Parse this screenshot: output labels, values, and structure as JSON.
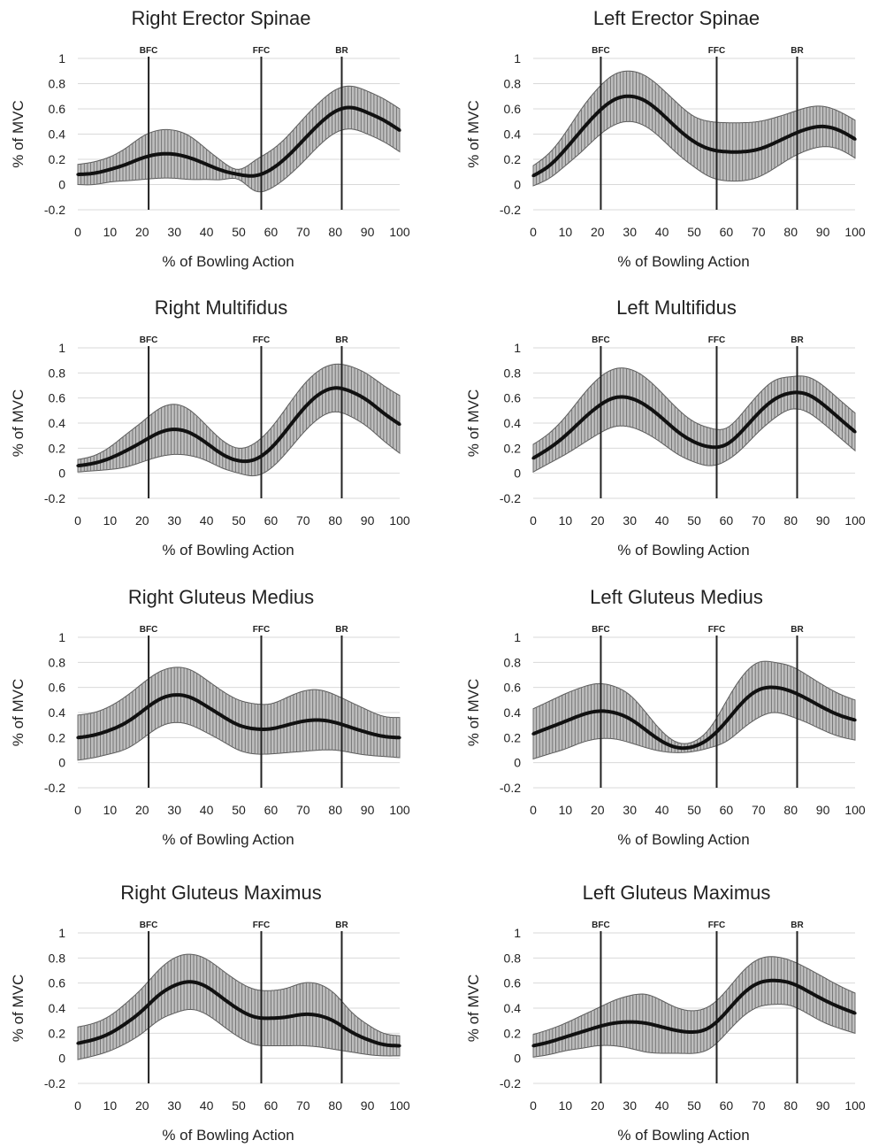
{
  "chart_data": [
    {
      "type": "line",
      "title": "Right Erector Spinae",
      "xlabel": "% of Bowling Action",
      "ylabel": "% of MVC",
      "xlim": [
        0,
        100
      ],
      "ylim": [
        -0.2,
        1
      ],
      "xticks": [
        0,
        10,
        20,
        30,
        40,
        50,
        60,
        70,
        80,
        90,
        100
      ],
      "yticks": [
        -0.2,
        0,
        0.2,
        0.4,
        0.6,
        0.8,
        1
      ],
      "grid": "horizontal",
      "events": [
        {
          "label": "BFC",
          "x": 22
        },
        {
          "label": "FFC",
          "x": 57
        },
        {
          "label": "BR",
          "x": 82
        }
      ],
      "x": [
        0,
        5,
        10,
        15,
        20,
        25,
        30,
        35,
        40,
        45,
        50,
        55,
        60,
        65,
        70,
        75,
        80,
        85,
        90,
        95,
        100
      ],
      "mean": [
        0.08,
        0.09,
        0.12,
        0.16,
        0.21,
        0.24,
        0.24,
        0.21,
        0.16,
        0.11,
        0.08,
        0.07,
        0.12,
        0.22,
        0.35,
        0.48,
        0.58,
        0.61,
        0.57,
        0.51,
        0.43
      ],
      "sd": [
        0.08,
        0.09,
        0.1,
        0.13,
        0.17,
        0.19,
        0.19,
        0.17,
        0.12,
        0.07,
        0.04,
        0.12,
        0.15,
        0.16,
        0.17,
        0.17,
        0.17,
        0.17,
        0.17,
        0.17,
        0.17
      ]
    },
    {
      "type": "line",
      "title": "Left Erector Spinae",
      "xlabel": "% of Bowling Action",
      "ylabel": "% of MVC",
      "xlim": [
        0,
        100
      ],
      "ylim": [
        -0.2,
        1
      ],
      "xticks": [
        0,
        10,
        20,
        30,
        40,
        50,
        60,
        70,
        80,
        90,
        100
      ],
      "yticks": [
        -0.2,
        0,
        0.2,
        0.4,
        0.6,
        0.8,
        1
      ],
      "grid": "horizontal",
      "events": [
        {
          "label": "BFC",
          "x": 21
        },
        {
          "label": "FFC",
          "x": 57
        },
        {
          "label": "BR",
          "x": 82
        }
      ],
      "x": [
        0,
        5,
        10,
        15,
        20,
        25,
        30,
        35,
        40,
        45,
        50,
        55,
        60,
        65,
        70,
        75,
        80,
        85,
        90,
        95,
        100
      ],
      "mean": [
        0.07,
        0.15,
        0.28,
        0.43,
        0.57,
        0.67,
        0.7,
        0.66,
        0.56,
        0.44,
        0.34,
        0.28,
        0.26,
        0.26,
        0.28,
        0.33,
        0.39,
        0.44,
        0.46,
        0.43,
        0.36
      ],
      "sd": [
        0.08,
        0.1,
        0.13,
        0.17,
        0.19,
        0.2,
        0.2,
        0.2,
        0.2,
        0.2,
        0.2,
        0.22,
        0.23,
        0.23,
        0.22,
        0.2,
        0.18,
        0.17,
        0.16,
        0.15,
        0.15
      ]
    },
    {
      "type": "line",
      "title": "Right Multifidus",
      "xlabel": "% of Bowling Action",
      "ylabel": "% of MVC",
      "xlim": [
        0,
        100
      ],
      "ylim": [
        -0.2,
        1
      ],
      "xticks": [
        0,
        10,
        20,
        30,
        40,
        50,
        60,
        70,
        80,
        90,
        100
      ],
      "yticks": [
        -0.2,
        0,
        0.2,
        0.4,
        0.6,
        0.8,
        1
      ],
      "grid": "horizontal",
      "events": [
        {
          "label": "BFC",
          "x": 22
        },
        {
          "label": "FFC",
          "x": 57
        },
        {
          "label": "BR",
          "x": 82
        }
      ],
      "x": [
        0,
        5,
        10,
        15,
        20,
        25,
        30,
        35,
        40,
        45,
        50,
        55,
        60,
        65,
        70,
        75,
        80,
        85,
        90,
        95,
        100
      ],
      "mean": [
        0.06,
        0.08,
        0.12,
        0.18,
        0.25,
        0.32,
        0.35,
        0.32,
        0.24,
        0.15,
        0.1,
        0.11,
        0.2,
        0.35,
        0.51,
        0.63,
        0.68,
        0.65,
        0.58,
        0.48,
        0.39
      ],
      "sd": [
        0.05,
        0.06,
        0.09,
        0.13,
        0.16,
        0.19,
        0.2,
        0.18,
        0.14,
        0.11,
        0.1,
        0.13,
        0.16,
        0.18,
        0.19,
        0.19,
        0.19,
        0.2,
        0.21,
        0.22,
        0.23
      ]
    },
    {
      "type": "line",
      "title": "Left Multifidus",
      "xlabel": "% of Bowling Action",
      "ylabel": "% of MVC",
      "xlim": [
        0,
        100
      ],
      "ylim": [
        -0.2,
        1
      ],
      "xticks": [
        0,
        10,
        20,
        30,
        40,
        50,
        60,
        70,
        80,
        90,
        100
      ],
      "yticks": [
        -0.2,
        0,
        0.2,
        0.4,
        0.6,
        0.8,
        1
      ],
      "grid": "horizontal",
      "events": [
        {
          "label": "BFC",
          "x": 21
        },
        {
          "label": "FFC",
          "x": 57
        },
        {
          "label": "BR",
          "x": 82
        }
      ],
      "x": [
        0,
        5,
        10,
        15,
        20,
        25,
        30,
        35,
        40,
        45,
        50,
        55,
        60,
        65,
        70,
        75,
        80,
        85,
        90,
        95,
        100
      ],
      "mean": [
        0.12,
        0.2,
        0.3,
        0.42,
        0.53,
        0.6,
        0.6,
        0.54,
        0.44,
        0.33,
        0.25,
        0.21,
        0.23,
        0.34,
        0.48,
        0.59,
        0.64,
        0.63,
        0.55,
        0.44,
        0.33
      ],
      "sd": [
        0.11,
        0.12,
        0.15,
        0.19,
        0.22,
        0.23,
        0.23,
        0.22,
        0.2,
        0.18,
        0.16,
        0.15,
        0.13,
        0.14,
        0.15,
        0.15,
        0.13,
        0.14,
        0.15,
        0.15,
        0.15
      ]
    },
    {
      "type": "line",
      "title": "Right Gluteus Medius",
      "xlabel": "% of Bowling Action",
      "ylabel": "% of MVC",
      "xlim": [
        0,
        100
      ],
      "ylim": [
        -0.2,
        1
      ],
      "xticks": [
        0,
        10,
        20,
        30,
        40,
        50,
        60,
        70,
        80,
        90,
        100
      ],
      "yticks": [
        -0.2,
        0,
        0.2,
        0.4,
        0.6,
        0.8,
        1
      ],
      "grid": "horizontal",
      "events": [
        {
          "label": "BFC",
          "x": 22
        },
        {
          "label": "FFC",
          "x": 57
        },
        {
          "label": "BR",
          "x": 82
        }
      ],
      "x": [
        0,
        5,
        10,
        15,
        20,
        25,
        30,
        35,
        40,
        45,
        50,
        55,
        60,
        65,
        70,
        75,
        80,
        85,
        90,
        95,
        100
      ],
      "mean": [
        0.2,
        0.22,
        0.26,
        0.32,
        0.41,
        0.5,
        0.54,
        0.52,
        0.45,
        0.37,
        0.3,
        0.27,
        0.27,
        0.3,
        0.33,
        0.34,
        0.32,
        0.28,
        0.24,
        0.21,
        0.2
      ],
      "sd": [
        0.18,
        0.18,
        0.19,
        0.21,
        0.22,
        0.22,
        0.22,
        0.22,
        0.21,
        0.2,
        0.2,
        0.2,
        0.2,
        0.22,
        0.24,
        0.24,
        0.22,
        0.2,
        0.18,
        0.16,
        0.16
      ]
    },
    {
      "type": "line",
      "title": "Left Gluteus Medius",
      "xlabel": "% of Bowling Action",
      "ylabel": "% of MVC",
      "xlim": [
        0,
        100
      ],
      "ylim": [
        -0.2,
        1
      ],
      "xticks": [
        0,
        10,
        20,
        30,
        40,
        50,
        60,
        70,
        80,
        90,
        100
      ],
      "yticks": [
        -0.2,
        0,
        0.2,
        0.4,
        0.6,
        0.8,
        1
      ],
      "grid": "horizontal",
      "events": [
        {
          "label": "BFC",
          "x": 21
        },
        {
          "label": "FFC",
          "x": 57
        },
        {
          "label": "BR",
          "x": 82
        }
      ],
      "x": [
        0,
        5,
        10,
        15,
        20,
        25,
        30,
        35,
        40,
        45,
        50,
        55,
        60,
        65,
        70,
        75,
        80,
        85,
        90,
        95,
        100
      ],
      "mean": [
        0.23,
        0.28,
        0.33,
        0.38,
        0.41,
        0.4,
        0.35,
        0.26,
        0.17,
        0.12,
        0.13,
        0.2,
        0.33,
        0.48,
        0.58,
        0.6,
        0.57,
        0.51,
        0.44,
        0.38,
        0.34
      ],
      "sd": [
        0.2,
        0.21,
        0.22,
        0.22,
        0.22,
        0.21,
        0.19,
        0.14,
        0.08,
        0.04,
        0.04,
        0.08,
        0.16,
        0.21,
        0.22,
        0.2,
        0.2,
        0.19,
        0.18,
        0.17,
        0.16
      ]
    },
    {
      "type": "line",
      "title": "Right Gluteus Maximus",
      "xlabel": "% of Bowling Action",
      "ylabel": "% of MVC",
      "xlim": [
        0,
        100
      ],
      "ylim": [
        -0.2,
        1
      ],
      "xticks": [
        0,
        10,
        20,
        30,
        40,
        50,
        60,
        70,
        80,
        90,
        100
      ],
      "yticks": [
        -0.2,
        0,
        0.2,
        0.4,
        0.6,
        0.8,
        1
      ],
      "grid": "horizontal",
      "events": [
        {
          "label": "BFC",
          "x": 22
        },
        {
          "label": "FFC",
          "x": 57
        },
        {
          "label": "BR",
          "x": 82
        }
      ],
      "x": [
        0,
        5,
        10,
        15,
        20,
        25,
        30,
        35,
        40,
        45,
        50,
        55,
        60,
        65,
        70,
        75,
        80,
        85,
        90,
        95,
        100
      ],
      "mean": [
        0.12,
        0.15,
        0.2,
        0.28,
        0.38,
        0.5,
        0.58,
        0.61,
        0.57,
        0.48,
        0.39,
        0.33,
        0.32,
        0.33,
        0.35,
        0.34,
        0.29,
        0.21,
        0.15,
        0.11,
        0.1
      ],
      "sd": [
        0.13,
        0.13,
        0.14,
        0.16,
        0.18,
        0.2,
        0.22,
        0.22,
        0.22,
        0.22,
        0.22,
        0.22,
        0.22,
        0.23,
        0.25,
        0.25,
        0.22,
        0.16,
        0.12,
        0.09,
        0.08
      ]
    },
    {
      "type": "line",
      "title": "Left Gluteus Maximus",
      "xlabel": "% of Bowling Action",
      "ylabel": "% of MVC",
      "xlim": [
        0,
        100
      ],
      "ylim": [
        -0.2,
        1
      ],
      "xticks": [
        0,
        10,
        20,
        30,
        40,
        50,
        60,
        70,
        80,
        90,
        100
      ],
      "yticks": [
        -0.2,
        0,
        0.2,
        0.4,
        0.6,
        0.8,
        1
      ],
      "grid": "horizontal",
      "events": [
        {
          "label": "BFC",
          "x": 21
        },
        {
          "label": "FFC",
          "x": 57
        },
        {
          "label": "BR",
          "x": 82
        }
      ],
      "x": [
        0,
        5,
        10,
        15,
        20,
        25,
        30,
        35,
        40,
        45,
        50,
        55,
        60,
        65,
        70,
        75,
        80,
        85,
        90,
        95,
        100
      ],
      "mean": [
        0.1,
        0.13,
        0.17,
        0.21,
        0.25,
        0.28,
        0.29,
        0.28,
        0.25,
        0.22,
        0.21,
        0.25,
        0.37,
        0.51,
        0.6,
        0.62,
        0.6,
        0.54,
        0.47,
        0.41,
        0.36
      ],
      "sd": [
        0.09,
        0.1,
        0.11,
        0.13,
        0.15,
        0.18,
        0.21,
        0.23,
        0.21,
        0.18,
        0.17,
        0.17,
        0.17,
        0.18,
        0.19,
        0.19,
        0.18,
        0.18,
        0.18,
        0.17,
        0.16
      ]
    }
  ]
}
